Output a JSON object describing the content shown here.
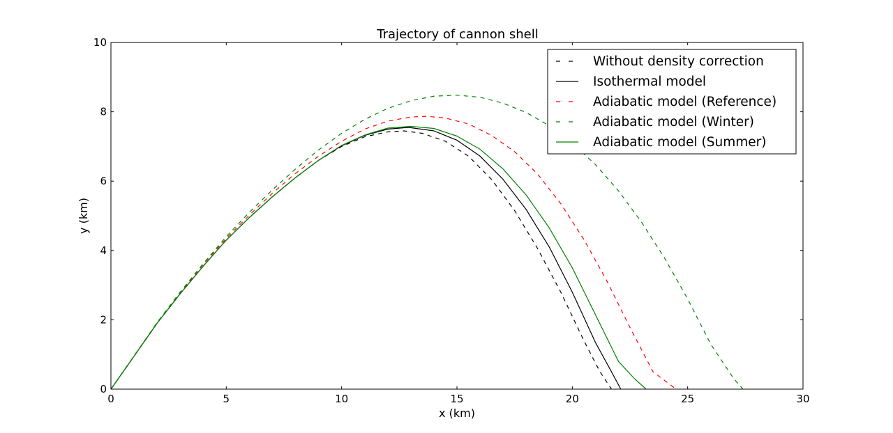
{
  "chart_data": {
    "type": "line",
    "title": "Trajectory of cannon shell",
    "xlabel": "x (km)",
    "ylabel": "y (km)",
    "xlim": [
      0,
      30
    ],
    "ylim": [
      0,
      10
    ],
    "xticks": [
      "0",
      "5",
      "10",
      "15",
      "20",
      "25",
      "30"
    ],
    "yticks": [
      "0",
      "2",
      "4",
      "6",
      "8",
      "10"
    ],
    "grid": false,
    "legend_position": "top-right",
    "series": [
      {
        "name": "Without density correction",
        "color": "#000000",
        "linestyle": "dashed",
        "x": [
          0,
          1,
          2,
          3,
          4,
          5,
          6,
          7,
          8,
          9,
          10,
          11,
          12,
          12.7,
          13.5,
          14.5,
          15.5,
          16.5,
          17.5,
          18.5,
          19.5,
          20.5,
          21.2,
          21.7
        ],
        "y": [
          0,
          0.95,
          1.9,
          2.75,
          3.55,
          4.3,
          4.95,
          5.55,
          6.1,
          6.6,
          7.0,
          7.28,
          7.42,
          7.45,
          7.38,
          7.15,
          6.72,
          6.05,
          5.15,
          4.05,
          2.8,
          1.4,
          0.5,
          0
        ]
      },
      {
        "name": "Isothermal model",
        "color": "#000000",
        "linestyle": "solid",
        "x": [
          0,
          1,
          2,
          3,
          4,
          5,
          6,
          7,
          8,
          9,
          10,
          11,
          12,
          12.9,
          14,
          15,
          16,
          17,
          18,
          19,
          20,
          21,
          21.7,
          22.1
        ],
        "y": [
          0,
          0.95,
          1.9,
          2.75,
          3.55,
          4.3,
          4.95,
          5.55,
          6.1,
          6.6,
          7.02,
          7.32,
          7.5,
          7.55,
          7.45,
          7.18,
          6.72,
          6.05,
          5.18,
          4.1,
          2.8,
          1.35,
          0.5,
          0
        ]
      },
      {
        "name": "Adiabatic model (Reference)",
        "color": "#ff0000",
        "linestyle": "dashed",
        "x": [
          0,
          1,
          2,
          3,
          4,
          5,
          6,
          7,
          8,
          9,
          10,
          11,
          12,
          13,
          13.7,
          14.5,
          15.5,
          16.5,
          17.5,
          18.5,
          19.5,
          20.5,
          21.5,
          22.5,
          23.5,
          24.5
        ],
        "y": [
          0,
          0.95,
          1.9,
          2.78,
          3.6,
          4.35,
          5.02,
          5.65,
          6.22,
          6.72,
          7.15,
          7.5,
          7.73,
          7.85,
          7.87,
          7.82,
          7.65,
          7.32,
          6.85,
          6.2,
          5.35,
          4.32,
          3.12,
          1.78,
          0.5,
          0
        ]
      },
      {
        "name": "Adiabatic model (Winter)",
        "color": "#008000",
        "linestyle": "dashed",
        "x": [
          0,
          1,
          2,
          3,
          4,
          5,
          6,
          7,
          8,
          9,
          10,
          11,
          12,
          13,
          14,
          15,
          16,
          17,
          18,
          19,
          20,
          21,
          22,
          23,
          24,
          25,
          26,
          27,
          27.4
        ],
        "y": [
          0,
          0.96,
          1.92,
          2.8,
          3.62,
          4.4,
          5.1,
          5.75,
          6.35,
          6.9,
          7.38,
          7.78,
          8.1,
          8.32,
          8.45,
          8.48,
          8.42,
          8.25,
          7.98,
          7.6,
          7.1,
          6.48,
          5.72,
          4.82,
          3.78,
          2.6,
          1.3,
          0.3,
          0
        ]
      },
      {
        "name": "Adiabatic model (Summer)",
        "color": "#008000",
        "linestyle": "solid",
        "x": [
          0,
          1,
          2,
          3,
          4,
          5,
          6,
          7,
          8,
          9,
          10,
          11,
          12,
          13,
          14,
          15,
          16,
          17,
          18,
          19,
          20,
          21,
          22,
          22.7,
          23.2
        ],
        "y": [
          0,
          0.95,
          1.9,
          2.75,
          3.55,
          4.3,
          4.95,
          5.55,
          6.1,
          6.6,
          7.03,
          7.33,
          7.53,
          7.58,
          7.52,
          7.3,
          6.92,
          6.35,
          5.6,
          4.65,
          3.5,
          2.15,
          0.8,
          0.3,
          0
        ]
      }
    ]
  }
}
